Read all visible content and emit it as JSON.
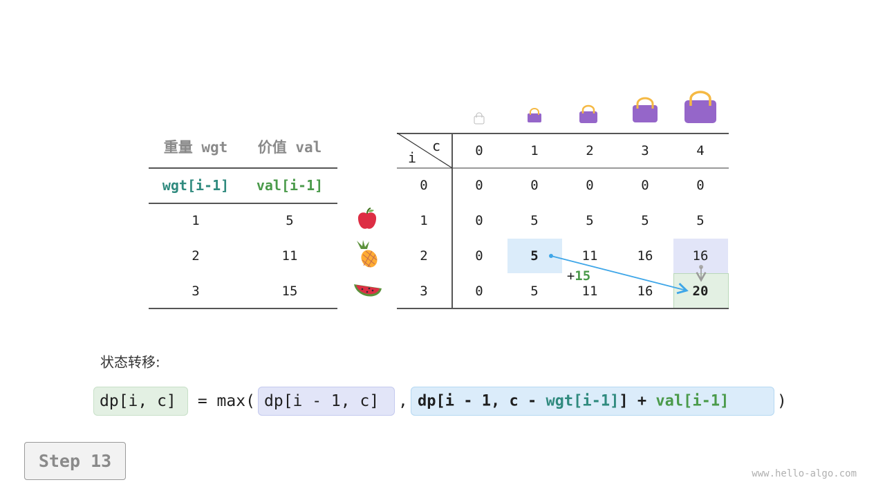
{
  "left_table": {
    "headers": [
      "重量 wgt",
      "价值 val"
    ],
    "subheaders": [
      "wgt[i-1]",
      "val[i-1]"
    ],
    "rows": [
      [
        "1",
        "5"
      ],
      [
        "2",
        "11"
      ],
      [
        "3",
        "15"
      ]
    ],
    "item_icons": [
      "apple-icon",
      "pineapple-icon",
      "watermelon-icon"
    ]
  },
  "dp_table": {
    "corner_row_label": "i",
    "corner_col_label": "c",
    "col_headers": [
      "0",
      "1",
      "2",
      "3",
      "4"
    ],
    "row_headers": [
      "0",
      "1",
      "2",
      "3"
    ],
    "rows": [
      [
        "0",
        "0",
        "0",
        "0",
        "0"
      ],
      [
        "0",
        "5",
        "5",
        "5",
        "5"
      ],
      [
        "0",
        "5",
        "11",
        "16",
        "16"
      ],
      [
        "0",
        "5",
        "11",
        "16",
        "20"
      ]
    ],
    "capacity_icons": [
      "bag-icon",
      "bag-icon",
      "bag-icon",
      "bag-icon",
      "bag-icon"
    ],
    "annotation": {
      "plus": "+",
      "value": "15"
    }
  },
  "colors": {
    "blue_cell": "#dbecfa",
    "lavender_cell": "#e2e5f8",
    "green_cell": "#e3f0e3",
    "arrow": "#3ea6e8",
    "wgt": "#2f8a7e",
    "val": "#4a9a4a",
    "bag": "#9566c9",
    "handle": "#f5b944"
  },
  "formula": {
    "label": "状态转移:",
    "lhs": "dp[i, c]",
    "eq": " = max(",
    "term1": "dp[i - 1, c]",
    "comma": ",",
    "term2_a": "dp[i - 1, c - ",
    "term2_wgt": "wgt[i-1]",
    "term2_b": "] + ",
    "term2_val": "val[i-1]",
    "close": ")"
  },
  "step": "Step 13",
  "watermark": "www.hello-algo.com"
}
